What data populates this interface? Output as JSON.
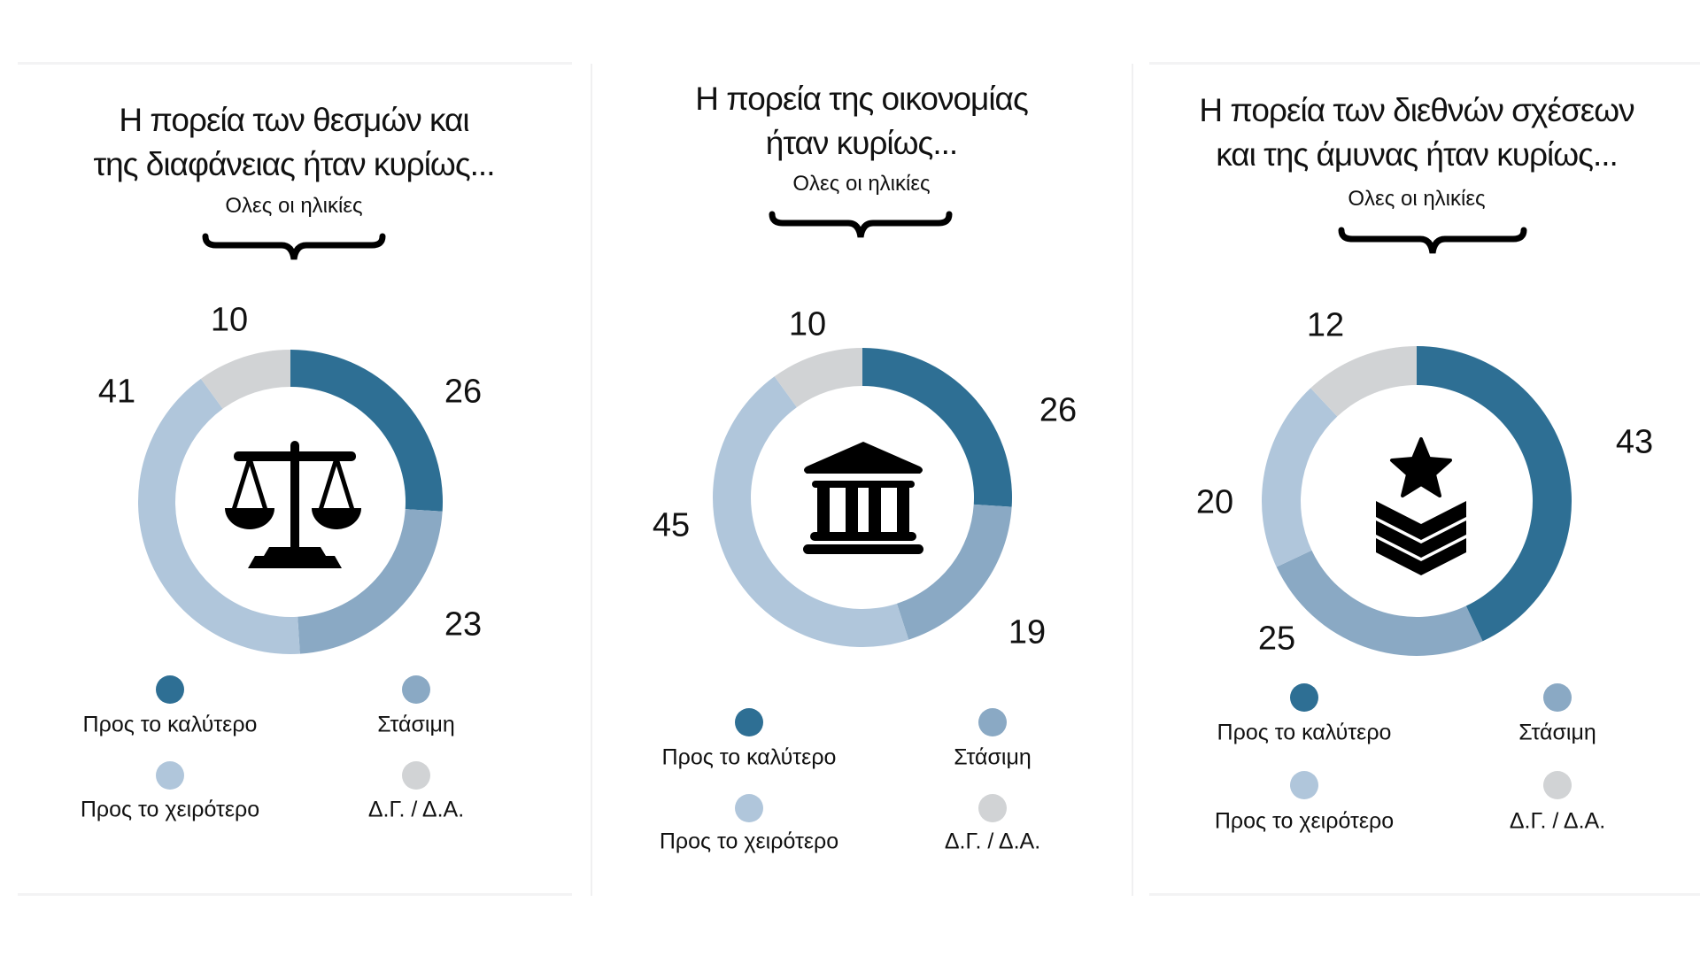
{
  "colors": {
    "better": "#2e6f94",
    "stagnant": "#8aa9c4",
    "worse": "#b0c6db",
    "dk": "#d1d3d5"
  },
  "legend": {
    "better": "Προς το καλύτερο",
    "stagnant": "Στάσιμη",
    "worse": "Προς το χειρότερο",
    "dk": "Δ.Γ. / Δ.Α."
  },
  "panels": [
    {
      "title_line1": "Η πορεία των θεσμών και",
      "title_line2": "της διαφάνειας ήταν κυρίως...",
      "subtitle": "Ολες οι ηλικίες",
      "icon": "scales-of-justice-icon",
      "values": {
        "better": "26",
        "stagnant": "23",
        "worse": "41",
        "dk": "10"
      }
    },
    {
      "title_line1": "Η πορεία της οικονομίας",
      "title_line2": "ήταν κυρίως...",
      "subtitle": "Ολες οι ηλικίες",
      "icon": "bank-building-icon",
      "values": {
        "better": "26",
        "stagnant": "19",
        "worse": "45",
        "dk": "10"
      }
    },
    {
      "title_line1": "Η πορεία των διεθνών σχέσεων",
      "title_line2": "και της άμυνας ήταν κυρίως...",
      "subtitle": "Ολες οι ηλικίες",
      "icon": "military-rank-icon",
      "values": {
        "better": "43",
        "stagnant": "25",
        "worse": "20",
        "dk": "12"
      }
    }
  ],
  "chart_data": [
    {
      "type": "pie",
      "title": "Η πορεία των θεσμών και της διαφάνειας ήταν κυρίως...",
      "subtitle": "Ολες οι ηλικίες",
      "categories": [
        "Προς το καλύτερο",
        "Στάσιμη",
        "Προς το χειρότερο",
        "Δ.Γ. / Δ.Α."
      ],
      "values": [
        26,
        23,
        41,
        10
      ],
      "colors": [
        "#2e6f94",
        "#8aa9c4",
        "#b0c6db",
        "#d1d3d5"
      ],
      "style": "donut",
      "legend_position": "bottom"
    },
    {
      "type": "pie",
      "title": "Η πορεία της οικονομίας ήταν κυρίως...",
      "subtitle": "Ολες οι ηλικίες",
      "categories": [
        "Προς το καλύτερο",
        "Στάσιμη",
        "Προς το χειρότερο",
        "Δ.Γ. / Δ.Α."
      ],
      "values": [
        26,
        19,
        45,
        10
      ],
      "colors": [
        "#2e6f94",
        "#8aa9c4",
        "#b0c6db",
        "#d1d3d5"
      ],
      "style": "donut",
      "legend_position": "bottom"
    },
    {
      "type": "pie",
      "title": "Η πορεία των διεθνών σχέσεων και της άμυνας ήταν κυρίως...",
      "subtitle": "Ολες οι ηλικίες",
      "categories": [
        "Προς το καλύτερο",
        "Στάσιμη",
        "Προς το χειρότερο",
        "Δ.Γ. / Δ.Α."
      ],
      "values": [
        43,
        25,
        20,
        12
      ],
      "colors": [
        "#2e6f94",
        "#8aa9c4",
        "#b0c6db",
        "#d1d3d5"
      ],
      "style": "donut",
      "legend_position": "bottom"
    }
  ]
}
